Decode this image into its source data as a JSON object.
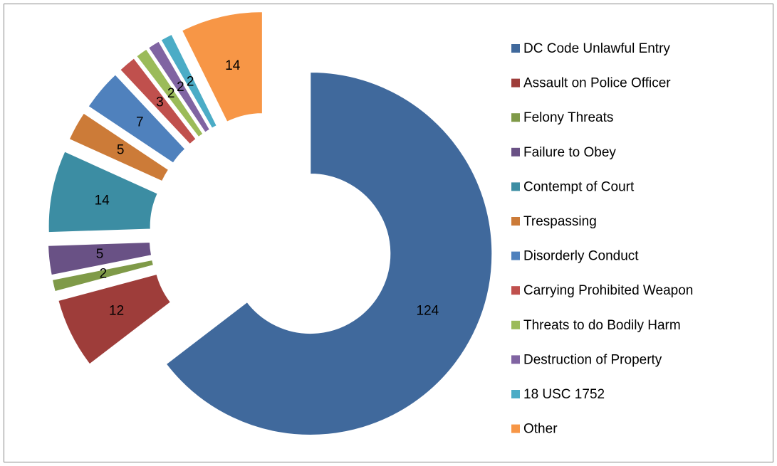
{
  "chart_data": {
    "type": "donut",
    "categories": [
      "DC Code Unlawful Entry",
      "Assault on Police Officer",
      "Felony Threats",
      "Failure to Obey",
      "Contempt of Court",
      "Trespassing",
      "Disorderly Conduct",
      "Carrying Prohibited Weapon",
      "Threats to do Bodily Harm",
      "Destruction of Property",
      "18 USC 1752",
      "Other"
    ],
    "values": [
      124,
      12,
      2,
      5,
      14,
      5,
      7,
      3,
      2,
      2,
      2,
      14
    ],
    "colors": [
      "#40699c",
      "#9e3d3a",
      "#7f9a48",
      "#695185",
      "#3c8da3",
      "#cc7b38",
      "#4f81bd",
      "#c0504d",
      "#9bbb59",
      "#8064a2",
      "#4bacc6",
      "#f79646"
    ],
    "legend": "right"
  }
}
